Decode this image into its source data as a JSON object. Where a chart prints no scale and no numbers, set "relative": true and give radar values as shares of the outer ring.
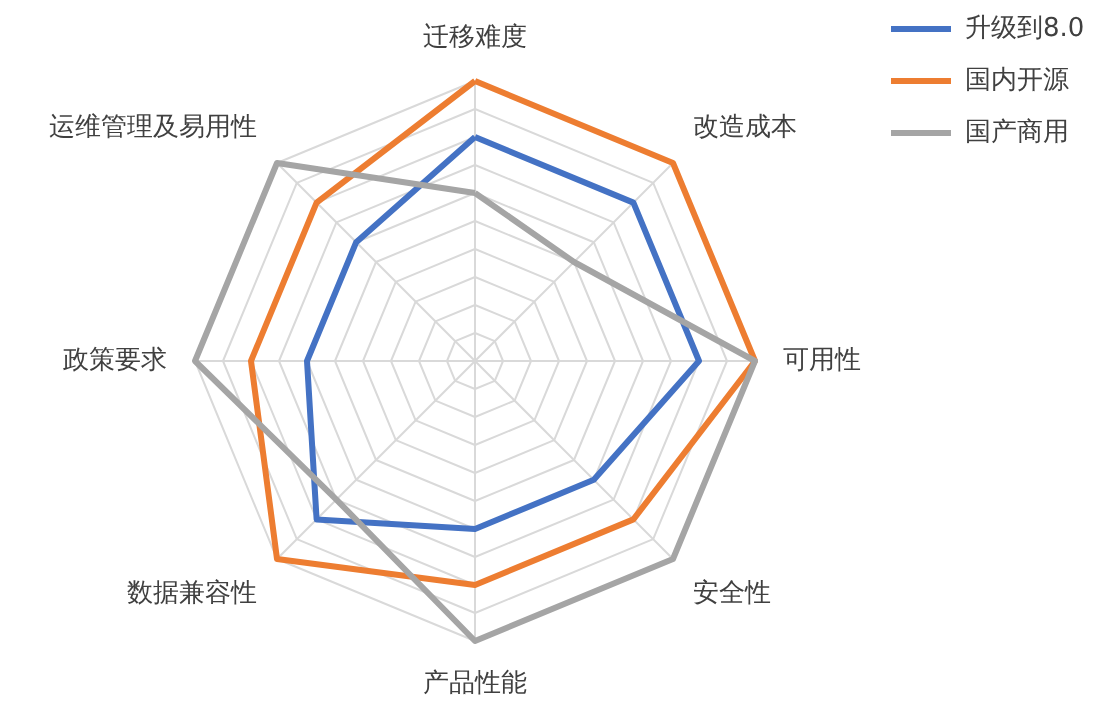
{
  "chart_data": {
    "type": "radar",
    "relative": true,
    "grid": true,
    "legend": "top right",
    "categories": [
      "迁移难度",
      "改造成本",
      "可用性",
      "安全性",
      "产品性能",
      "数据兼容性",
      "政策要求",
      "运维管理及易用性"
    ],
    "series": [
      {
        "name": "升级到8.0",
        "color": "#4472c4",
        "values": [
          0.8,
          0.8,
          0.8,
          0.6,
          0.6,
          0.8,
          0.6,
          0.6
        ]
      },
      {
        "name": "国内开源",
        "color": "#ed7d31",
        "values": [
          1.0,
          1.0,
          1.0,
          0.8,
          0.8,
          1.0,
          0.8,
          0.8
        ]
      },
      {
        "name": "国产商用",
        "color": "#a5a5a5",
        "values": [
          0.6,
          0.5,
          1.0,
          1.0,
          1.0,
          0.7,
          1.0,
          1.0
        ]
      }
    ]
  }
}
